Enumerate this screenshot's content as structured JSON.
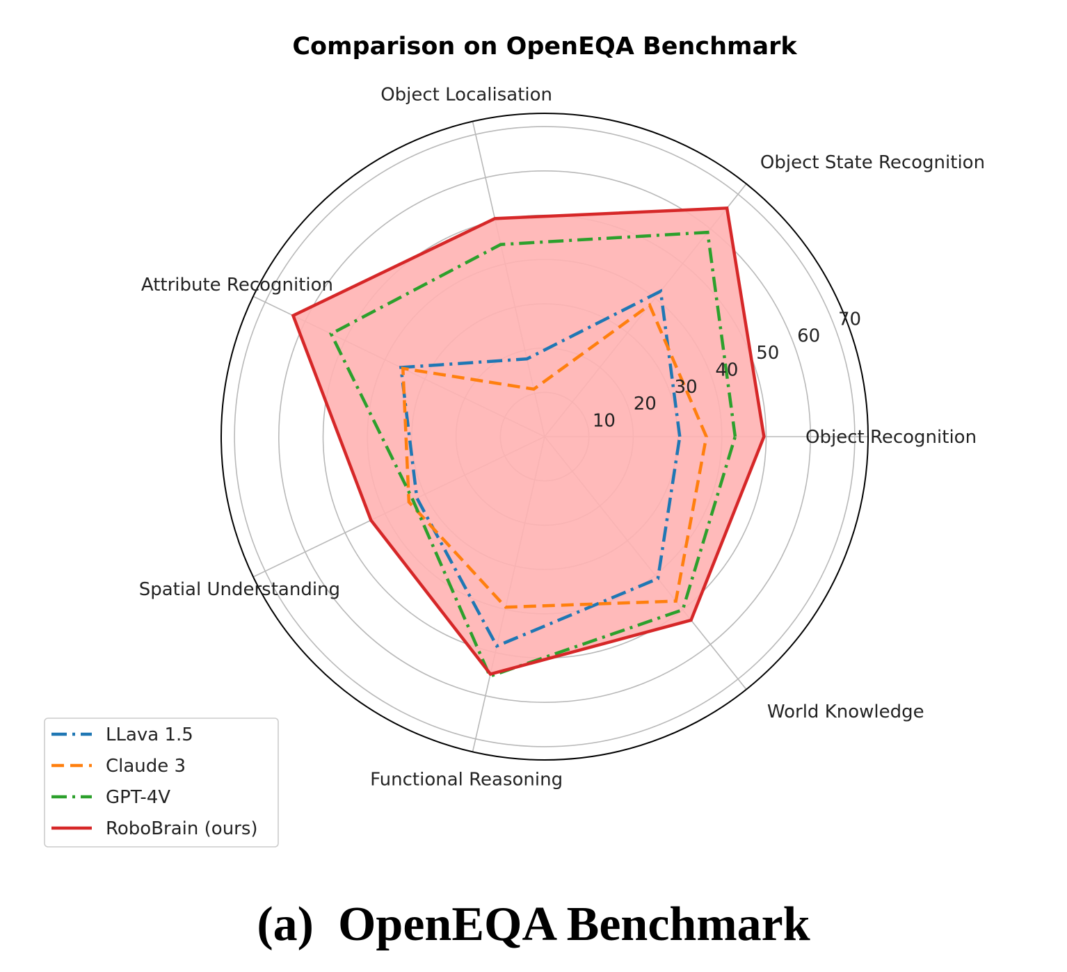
{
  "chart_data": {
    "type": "radar",
    "title": "Comparison on OpenEQA Benchmark",
    "categories": [
      "Object Recognition",
      "Object State Recognition",
      "Object Localisation",
      "Attribute Recognition",
      "Spatial Understanding",
      "Functional Reasoning",
      "World Knowledge"
    ],
    "radial_ticks": [
      10,
      20,
      30,
      40,
      50,
      60,
      70
    ],
    "rlim": [
      0,
      73
    ],
    "grid": true,
    "legend_position": "lower-left",
    "series": [
      {
        "name": "LLava 1.5",
        "color": "#1f77b4",
        "linestyle": "dashdot",
        "values": [
          30.5,
          42.0,
          18.0,
          36.0,
          32.0,
          48.5,
          41.0
        ]
      },
      {
        "name": "Claude 3",
        "color": "#ff7f0e",
        "linestyle": "dashed",
        "values": [
          36.5,
          38.0,
          11.0,
          35.5,
          34.0,
          39.5,
          47.5
        ]
      },
      {
        "name": "GPT-4V",
        "color": "#2ca02c",
        "linestyle": "dashdot",
        "values": [
          43.0,
          59.0,
          44.5,
          53.5,
          33.0,
          55.5,
          50.0
        ]
      },
      {
        "name": "RoboBrain (ours)",
        "color": "#d62728",
        "linestyle": "solid",
        "fill": "#ffb3b3",
        "values": [
          49.5,
          66.0,
          50.5,
          63.0,
          43.5,
          55.0,
          53.0
        ]
      }
    ]
  },
  "caption": "(a)  OpenEQA Benchmark"
}
